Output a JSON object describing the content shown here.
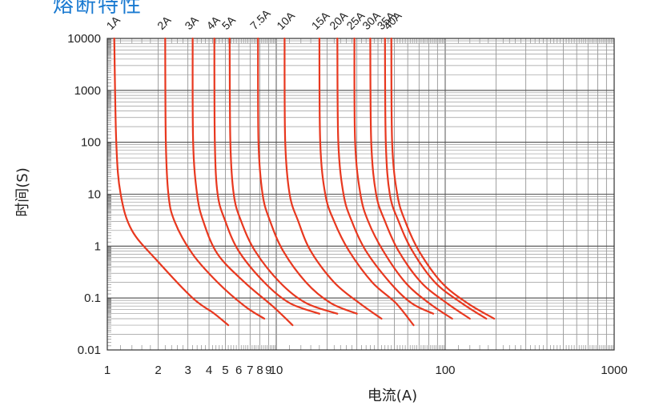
{
  "header": {
    "title": "熔断特性"
  },
  "chart_data": {
    "type": "line",
    "xlabel": "电流(A)",
    "ylabel": "时间(S)",
    "x_scale": "log",
    "y_scale": "log",
    "xlim": [
      1,
      1000
    ],
    "ylim": [
      0.01,
      10000
    ],
    "grid": true,
    "x_tick_labels": [
      {
        "value": 1,
        "label": "1"
      },
      {
        "value": 2,
        "label": "2"
      },
      {
        "value": 3,
        "label": "3"
      },
      {
        "value": 4,
        "label": "4"
      },
      {
        "value": 5,
        "label": "5"
      },
      {
        "value": 6,
        "label": "6"
      },
      {
        "value": 7,
        "label": "7"
      },
      {
        "value": 8,
        "label": "8"
      },
      {
        "value": 9,
        "label": "9"
      },
      {
        "value": 10,
        "label": "10"
      },
      {
        "value": 100,
        "label": "100"
      },
      {
        "value": 1000,
        "label": "1000"
      }
    ],
    "y_tick_labels": [
      {
        "value": 0.01,
        "label": "0.01"
      },
      {
        "value": 0.1,
        "label": "0.1"
      },
      {
        "value": 1,
        "label": "1"
      },
      {
        "value": 10,
        "label": "10"
      },
      {
        "value": 100,
        "label": "100"
      },
      {
        "value": 1000,
        "label": "1000"
      },
      {
        "value": 10000,
        "label": "10000"
      }
    ],
    "series_color": "#e8381f",
    "series": [
      {
        "name": "1A",
        "x": [
          1.1,
          1.13,
          1.2,
          1.4,
          2.0,
          3.2,
          4.3,
          5.2
        ],
        "y": [
          10000,
          100,
          10,
          2,
          0.5,
          0.1,
          0.05,
          0.03
        ]
      },
      {
        "name": "2A",
        "x": [
          2.2,
          2.22,
          2.3,
          2.5,
          3.2,
          4.5,
          6.5,
          8.5
        ],
        "y": [
          10000,
          100,
          10,
          3,
          0.7,
          0.2,
          0.07,
          0.04
        ]
      },
      {
        "name": "3A",
        "x": [
          3.2,
          3.22,
          3.4,
          3.7,
          4.5,
          6.5,
          9.5,
          12.5
        ],
        "y": [
          10000,
          100,
          10,
          3,
          0.7,
          0.2,
          0.07,
          0.03
        ]
      },
      {
        "name": "4A",
        "x": [
          4.3,
          4.33,
          4.5,
          5.0,
          6.0,
          8.5,
          12,
          18
        ],
        "y": [
          10000,
          100,
          10,
          3,
          0.8,
          0.2,
          0.08,
          0.05
        ]
      },
      {
        "name": "5A",
        "x": [
          5.3,
          5.35,
          5.6,
          6.2,
          7.5,
          10.5,
          15,
          23
        ],
        "y": [
          10000,
          100,
          10,
          3,
          0.8,
          0.2,
          0.08,
          0.05
        ]
      },
      {
        "name": "7.5A",
        "x": [
          7.8,
          7.85,
          8.3,
          9.2,
          11,
          15,
          21,
          30
        ],
        "y": [
          10000,
          100,
          10,
          3,
          0.8,
          0.2,
          0.08,
          0.05
        ]
      },
      {
        "name": "10A",
        "x": [
          11.2,
          11.3,
          12,
          13.5,
          16,
          22,
          31,
          42
        ],
        "y": [
          10000,
          100,
          10,
          3,
          0.8,
          0.2,
          0.08,
          0.04
        ]
      },
      {
        "name": "15A",
        "x": [
          18,
          18.2,
          19.5,
          22,
          27,
          37,
          51,
          65
        ],
        "y": [
          10000,
          100,
          10,
          3,
          0.8,
          0.2,
          0.08,
          0.03
        ]
      },
      {
        "name": "20A",
        "x": [
          23,
          23.3,
          25,
          28,
          34,
          47,
          63,
          85
        ],
        "y": [
          10000,
          100,
          10,
          3,
          0.8,
          0.2,
          0.08,
          0.05
        ]
      },
      {
        "name": "25A",
        "x": [
          29,
          29.3,
          31.5,
          35,
          43,
          58,
          80,
          110
        ],
        "y": [
          10000,
          100,
          10,
          3,
          0.8,
          0.2,
          0.08,
          0.04
        ]
      },
      {
        "name": "30A",
        "x": [
          36,
          36.5,
          39,
          44,
          53,
          72,
          102,
          140
        ],
        "y": [
          10000,
          100,
          10,
          3,
          0.8,
          0.2,
          0.08,
          0.04
        ]
      },
      {
        "name": "35A",
        "x": [
          44,
          44.5,
          47,
          53,
          64,
          87,
          125,
          175
        ],
        "y": [
          10000,
          100,
          10,
          3,
          0.8,
          0.2,
          0.08,
          0.04
        ]
      },
      {
        "name": "40A",
        "x": [
          48,
          48.5,
          52,
          58,
          70,
          95,
          135,
          195
        ],
        "y": [
          10000,
          100,
          10,
          3,
          0.8,
          0.2,
          0.08,
          0.04
        ]
      }
    ]
  }
}
